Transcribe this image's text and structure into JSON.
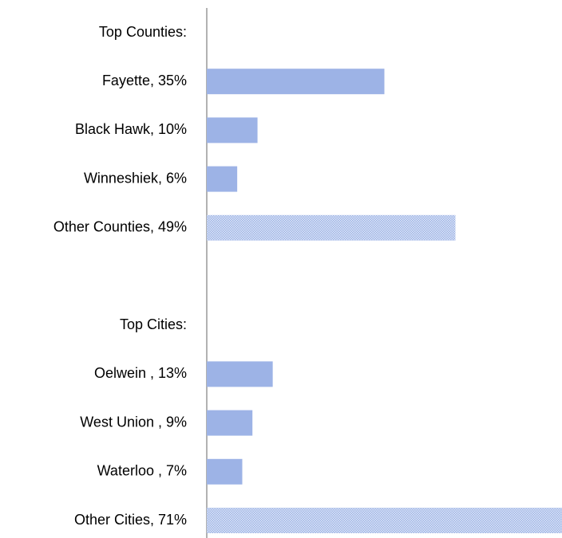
{
  "chart_data": {
    "type": "barh",
    "categories": [
      "Top Counties:",
      "Fayette, 35%",
      "Black Hawk, 10%",
      "Winneshiek, 6%",
      "Other Counties, 49%",
      null,
      "Top Cities:",
      "Oelwein , 13%",
      "West Union , 9%",
      "Waterloo , 7%",
      "Other Cities, 71%"
    ],
    "values": [
      null,
      35,
      10,
      6,
      49,
      null,
      null,
      13,
      9,
      7,
      71
    ],
    "colors": [
      null,
      "#9db3e6",
      "#9db3e6",
      "#9db3e6",
      "#bccdee",
      null,
      null,
      "#9db3e6",
      "#9db3e6",
      "#9db3e6",
      "#bccdee"
    ],
    "patterned": [
      false,
      false,
      false,
      false,
      true,
      false,
      false,
      false,
      false,
      false,
      true
    ],
    "xlim": [
      0,
      70
    ]
  }
}
